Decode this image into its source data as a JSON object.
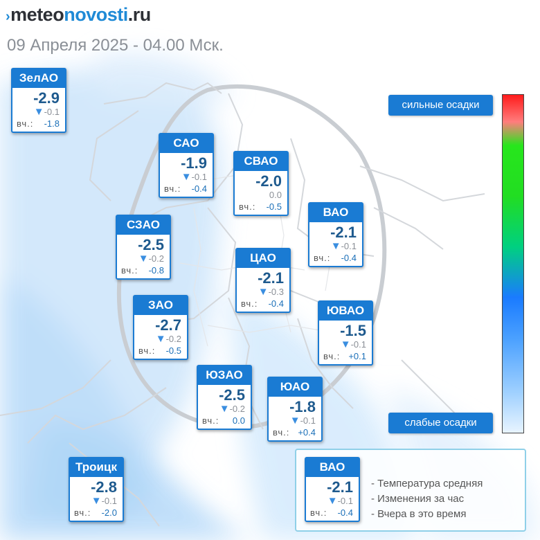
{
  "header": {
    "logo_mark": "›",
    "logo_part1": "meteo",
    "logo_part2": "novosti",
    "logo_part3": ".ru",
    "subtitle": "09 Апреля 2025 - 04.00 Мск."
  },
  "colors": {
    "card_header": "#1a7bd3",
    "temp_text": "#1e5a8e",
    "pill": "#1a7bd3"
  },
  "cards": [
    {
      "name": "ЗелАО",
      "temp": "-2.9",
      "delta": "-0.1",
      "trend": "down",
      "yesterday_label": "вч.:",
      "yesterday": "-1.8"
    },
    {
      "name": "САО",
      "temp": "-1.9",
      "delta": "-0.1",
      "trend": "down",
      "yesterday_label": "вч.:",
      "yesterday": "-0.4"
    },
    {
      "name": "СВАО",
      "temp": "-2.0",
      "delta": "0.0",
      "trend": "none",
      "yesterday_label": "вч.:",
      "yesterday": "-0.5"
    },
    {
      "name": "ВАО",
      "temp": "-2.1",
      "delta": "-0.1",
      "trend": "down",
      "yesterday_label": "вч.:",
      "yesterday": "-0.4"
    },
    {
      "name": "СЗАО",
      "temp": "-2.5",
      "delta": "-0.2",
      "trend": "down",
      "yesterday_label": "вч.:",
      "yesterday": "-0.8"
    },
    {
      "name": "ЦАО",
      "temp": "-2.1",
      "delta": "-0.3",
      "trend": "down",
      "yesterday_label": "вч.:",
      "yesterday": "-0.4"
    },
    {
      "name": "ЗАО",
      "temp": "-2.7",
      "delta": "-0.2",
      "trend": "down",
      "yesterday_label": "вч.:",
      "yesterday": "-0.5"
    },
    {
      "name": "ЮВАО",
      "temp": "-1.5",
      "delta": "-0.1",
      "trend": "down",
      "yesterday_label": "вч.:",
      "yesterday": "+0.1"
    },
    {
      "name": "ЮЗАО",
      "temp": "-2.5",
      "delta": "-0.2",
      "trend": "down",
      "yesterday_label": "вч.:",
      "yesterday": "0.0"
    },
    {
      "name": "ЮАО",
      "temp": "-1.8",
      "delta": "-0.1",
      "trend": "down",
      "yesterday_label": "вч.:",
      "yesterday": "+0.4"
    },
    {
      "name": "Троицк",
      "temp": "-2.8",
      "delta": "-0.1",
      "trend": "down",
      "yesterday_label": "вч.:",
      "yesterday": "-2.0"
    }
  ],
  "scale": {
    "top_label": "сильные осадки",
    "bottom_label": "слабые осадки"
  },
  "legend": {
    "card": {
      "name": "ВАО",
      "temp": "-2.1",
      "delta": "-0.1",
      "trend": "down",
      "yesterday_label": "вч.:",
      "yesterday": "-0.4"
    },
    "items": [
      "- Температура средняя",
      "- Изменения за час",
      "- Вчера в это время"
    ]
  }
}
